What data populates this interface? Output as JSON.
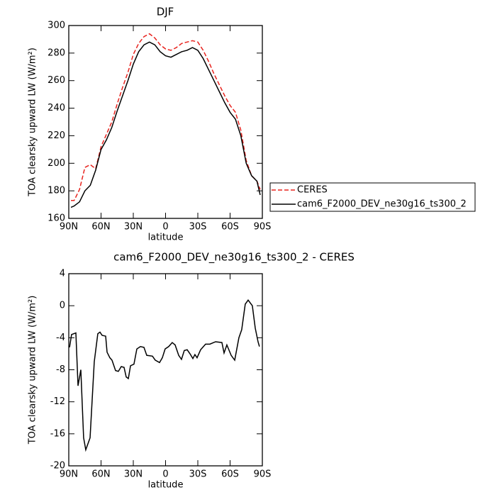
{
  "chart_data": [
    {
      "type": "line",
      "title": "DJF",
      "x_label": "latitude",
      "y_label": "TOA clearsky upward LW (W/m²)",
      "x": [
        88,
        85,
        80,
        75,
        70,
        65,
        60,
        55,
        50,
        45,
        40,
        35,
        30,
        25,
        20,
        15,
        10,
        5,
        0,
        -5,
        -10,
        -15,
        -20,
        -25,
        -30,
        -35,
        -40,
        -45,
        -50,
        -55,
        -60,
        -65,
        -70,
        -75,
        -80,
        -85,
        -88
      ],
      "series": [
        {
          "name": "CERES",
          "color": "#e8241f",
          "dash": true,
          "values": [
            173,
            173,
            181,
            197,
            199,
            196,
            212,
            221,
            230,
            243,
            255,
            266,
            279,
            287,
            292,
            294,
            291,
            286,
            283,
            282,
            284,
            287,
            288,
            289,
            288,
            282,
            274,
            265,
            257,
            249,
            242,
            237,
            224,
            202,
            191,
            187,
            181
          ]
        },
        {
          "name": "cam6_F2000_DEV_ne30g16_ts300_2",
          "color": "#000000",
          "dash": false,
          "values": [
            168,
            169,
            172,
            180,
            184,
            195,
            210,
            217,
            226,
            238,
            249,
            260,
            272,
            281,
            286,
            288,
            286,
            281,
            278,
            277,
            279,
            281,
            282,
            284,
            282,
            276,
            268,
            260,
            252,
            244,
            237,
            232,
            220,
            200,
            191,
            187,
            177
          ]
        }
      ],
      "xlim": [
        90,
        -90
      ],
      "xticks": [
        {
          "value": 90,
          "label": "90N"
        },
        {
          "value": 60,
          "label": "60N"
        },
        {
          "value": 30,
          "label": "30N"
        },
        0,
        {
          "value": -30,
          "label": "30S"
        },
        {
          "value": -60,
          "label": "60S"
        },
        {
          "value": -90,
          "label": "90S"
        }
      ],
      "ylim": [
        160,
        300
      ],
      "yticks": [
        160,
        180,
        200,
        220,
        240,
        260,
        280,
        300
      ],
      "legend": "right"
    },
    {
      "type": "line",
      "title": "cam6_F2000_DEV_ne30g16_ts300_2 - CERES",
      "x_label": "latitude",
      "y_label": "TOA clearsky upward LW (W/m²)",
      "x": [
        89.3,
        87.4,
        83.4,
        81.4,
        78.8,
        76.2,
        74.2,
        70.2,
        66.3,
        63,
        61,
        59,
        55.7,
        54.4,
        51.8,
        49.8,
        46.5,
        43.9,
        41.2,
        38.6,
        36.6,
        34.6,
        32.6,
        29.4,
        26.7,
        23.4,
        20.1,
        17.5,
        12.2,
        9.6,
        5.6,
        3,
        0.4,
        -2.9,
        -6.2,
        -8.9,
        -12.2,
        -14.8,
        -17.4,
        -20.1,
        -22.7,
        -25.4,
        -27.3,
        -29.3,
        -32.6,
        -37.2,
        -41.2,
        -46.5,
        -52.4,
        -54.4,
        -57,
        -61,
        -64.3,
        -68.2,
        -70.8,
        -74.1,
        -76.8,
        -80.7,
        -83.4,
        -86,
        -87.3
      ],
      "series": [
        {
          "name": null,
          "color": "#000000",
          "dash": false,
          "values": [
            -5.2,
            -3.6,
            -3.4,
            -10,
            -8,
            -16.5,
            -18,
            -16.5,
            -7,
            -3.5,
            -3.3,
            -3.7,
            -3.8,
            -5.8,
            -6.5,
            -6.8,
            -8.1,
            -8.2,
            -7.6,
            -7.7,
            -8.9,
            -9.1,
            -7.5,
            -7.3,
            -5.4,
            -5.1,
            -5.2,
            -6.2,
            -6.3,
            -6.8,
            -7.1,
            -6.5,
            -5.4,
            -5.1,
            -4.6,
            -4.9,
            -6.2,
            -6.7,
            -5.6,
            -5.5,
            -6,
            -6.6,
            -6.1,
            -6.5,
            -5.5,
            -4.8,
            -4.8,
            -4.5,
            -4.6,
            -5.9,
            -4.9,
            -6.2,
            -6.8,
            -4,
            -3,
            0.2,
            0.7,
            0,
            -2.8,
            -4.5,
            -5.1
          ]
        }
      ],
      "xlim": [
        90,
        -90
      ],
      "xticks": [
        {
          "value": 90,
          "label": "90N"
        },
        {
          "value": 60,
          "label": "60N"
        },
        {
          "value": 30,
          "label": "30N"
        },
        0,
        {
          "value": -30,
          "label": "30S"
        },
        {
          "value": -60,
          "label": "60S"
        },
        {
          "value": -90,
          "label": "90S"
        }
      ],
      "ylim": [
        -20,
        4
      ],
      "yticks": [
        -20,
        -16,
        -12,
        -8,
        -4,
        0,
        4
      ]
    }
  ]
}
